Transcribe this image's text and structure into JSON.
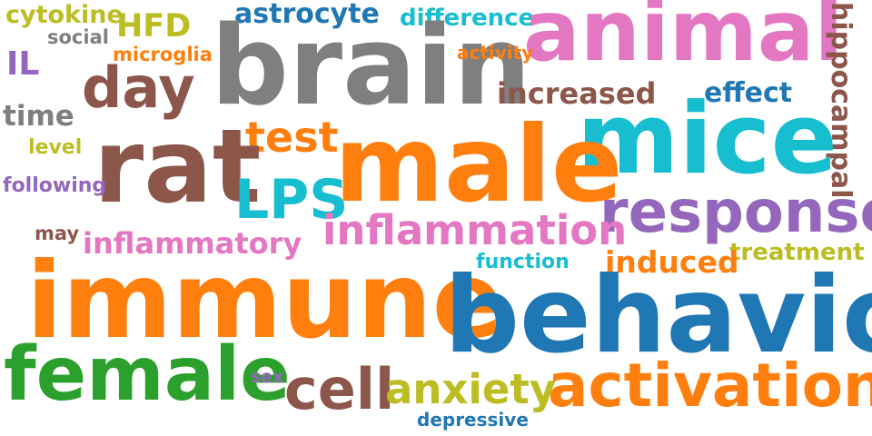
{
  "colors": {
    "blue": "#1f77b4",
    "orange": "#ff7f0e",
    "green": "#2ca02c",
    "purple": "#9467bd",
    "brown": "#8c564b",
    "pink": "#e377c2",
    "gray": "#7f7f7f",
    "olive": "#bcbd22",
    "cyan": "#17becf"
  },
  "words": [
    {
      "text": "cytokine",
      "color": "olive"
    },
    {
      "text": "HFD",
      "color": "olive"
    },
    {
      "text": "astrocyte",
      "color": "blue"
    },
    {
      "text": "difference",
      "color": "cyan"
    },
    {
      "text": "animal",
      "color": "pink"
    },
    {
      "text": "hippocampal",
      "color": "brown"
    },
    {
      "text": "social",
      "color": "gray"
    },
    {
      "text": "microglia",
      "color": "orange"
    },
    {
      "text": "brain",
      "color": "gray"
    },
    {
      "text": "activity",
      "color": "orange"
    },
    {
      "text": "IL",
      "color": "purple"
    },
    {
      "text": "day",
      "color": "brown"
    },
    {
      "text": "increased",
      "color": "brown"
    },
    {
      "text": "effect",
      "color": "blue"
    },
    {
      "text": "time",
      "color": "gray"
    },
    {
      "text": "test",
      "color": "orange"
    },
    {
      "text": "mice",
      "color": "cyan"
    },
    {
      "text": "level",
      "color": "olive"
    },
    {
      "text": "rat",
      "color": "brown"
    },
    {
      "text": "male",
      "color": "orange"
    },
    {
      "text": "following",
      "color": "purple"
    },
    {
      "text": "LPS",
      "color": "cyan"
    },
    {
      "text": "response",
      "color": "purple"
    },
    {
      "text": "inflammation",
      "color": "pink"
    },
    {
      "text": "may",
      "color": "brown"
    },
    {
      "text": "inflammatory",
      "color": "pink"
    },
    {
      "text": "treatment",
      "color": "olive"
    },
    {
      "text": "induced",
      "color": "orange"
    },
    {
      "text": "function",
      "color": "cyan"
    },
    {
      "text": "immune",
      "color": "orange"
    },
    {
      "text": "behavior",
      "color": "blue"
    },
    {
      "text": "female",
      "color": "green"
    },
    {
      "text": "sex",
      "color": "purple"
    },
    {
      "text": "cell",
      "color": "brown"
    },
    {
      "text": "anxiety",
      "color": "olive"
    },
    {
      "text": "activation",
      "color": "orange"
    },
    {
      "text": "depressive",
      "color": "blue"
    }
  ]
}
